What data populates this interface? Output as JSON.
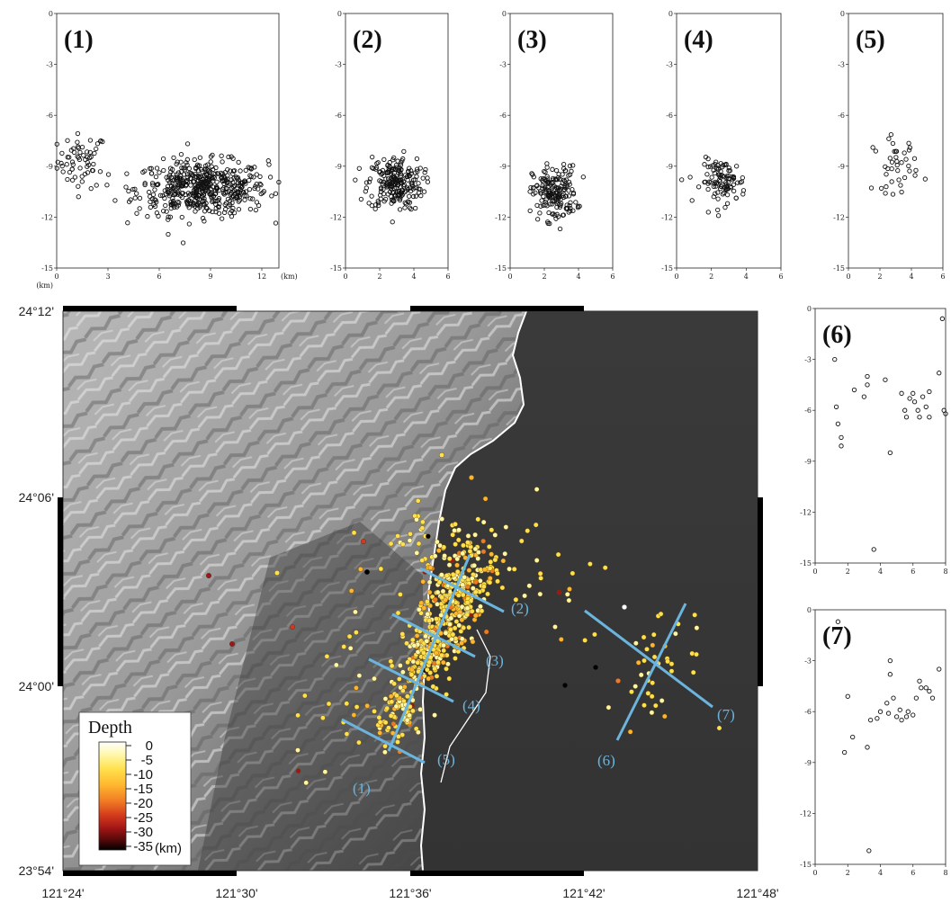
{
  "sections_top": [
    {
      "label": "(1)",
      "xlim": [
        0,
        13
      ],
      "xticks": [
        "0",
        "3",
        "6",
        "9",
        "12"
      ],
      "xunit_left": "(km)",
      "xunit_right": "(km)",
      "clusters": [
        {
          "cx": 1.5,
          "cy": -8.7,
          "sx": 0.9,
          "sy": 1.0,
          "n": 60
        },
        {
          "cx": 8.5,
          "cy": -10.3,
          "sx": 2.4,
          "sy": 1.0,
          "n": 520
        }
      ]
    },
    {
      "label": "(2)",
      "xlim": [
        0,
        6
      ],
      "xticks": [
        "0",
        "2",
        "4",
        "6"
      ],
      "clusters": [
        {
          "cx": 2.9,
          "cy": -10.0,
          "sx": 1.0,
          "sy": 1.0,
          "n": 220
        }
      ]
    },
    {
      "label": "(3)",
      "xlim": [
        0,
        6
      ],
      "xticks": [
        "0",
        "2",
        "4",
        "6"
      ],
      "clusters": [
        {
          "cx": 2.6,
          "cy": -10.6,
          "sx": 0.8,
          "sy": 1.0,
          "n": 180
        }
      ]
    },
    {
      "label": "(4)",
      "xlim": [
        0,
        6
      ],
      "xticks": [
        "0",
        "2",
        "4",
        "6"
      ],
      "clusters": [
        {
          "cx": 2.7,
          "cy": -9.9,
          "sx": 0.8,
          "sy": 0.8,
          "n": 100
        }
      ]
    },
    {
      "label": "(5)",
      "xlim": [
        0,
        6
      ],
      "xticks": [
        "0",
        "2",
        "4",
        "6"
      ],
      "clusters": [
        {
          "cx": 3.0,
          "cy": -8.9,
          "sx": 0.9,
          "sy": 1.0,
          "n": 40
        }
      ]
    }
  ],
  "sections_side": [
    {
      "label": "(6)",
      "xlim": [
        0,
        8
      ],
      "xticks": [
        "0",
        "2",
        "4",
        "6",
        "8"
      ],
      "points": [
        [
          1.2,
          -3.0
        ],
        [
          1.3,
          -5.8
        ],
        [
          1.4,
          -6.8
        ],
        [
          1.6,
          -7.6
        ],
        [
          1.6,
          -8.1
        ],
        [
          2.4,
          -4.8
        ],
        [
          3.0,
          -5.2
        ],
        [
          3.2,
          -4.0
        ],
        [
          3.2,
          -4.5
        ],
        [
          3.6,
          -14.2
        ],
        [
          4.3,
          -4.2
        ],
        [
          4.6,
          -8.5
        ],
        [
          5.3,
          -5.0
        ],
        [
          5.5,
          -6.0
        ],
        [
          5.6,
          -6.4
        ],
        [
          5.8,
          -5.3
        ],
        [
          6.0,
          -5.0
        ],
        [
          6.1,
          -5.5
        ],
        [
          6.3,
          -6.0
        ],
        [
          6.4,
          -6.4
        ],
        [
          6.6,
          -5.2
        ],
        [
          6.8,
          -5.8
        ],
        [
          7.0,
          -6.4
        ],
        [
          7.0,
          -4.9
        ],
        [
          7.6,
          -3.8
        ],
        [
          7.8,
          -0.6
        ],
        [
          7.9,
          -6.0
        ],
        [
          8.0,
          -6.2
        ]
      ]
    },
    {
      "label": "(7)",
      "xlim": [
        0,
        8
      ],
      "xticks": [
        "0",
        "2",
        "4",
        "6",
        "8"
      ],
      "points": [
        [
          1.4,
          -0.7
        ],
        [
          1.8,
          -8.4
        ],
        [
          2.0,
          -5.1
        ],
        [
          2.3,
          -7.5
        ],
        [
          3.2,
          -8.1
        ],
        [
          3.3,
          -14.2
        ],
        [
          3.4,
          -6.5
        ],
        [
          3.8,
          -6.4
        ],
        [
          4.0,
          -6.0
        ],
        [
          4.4,
          -5.5
        ],
        [
          4.5,
          -6.1
        ],
        [
          4.6,
          -3.0
        ],
        [
          4.6,
          -3.8
        ],
        [
          4.8,
          -5.2
        ],
        [
          5.0,
          -6.3
        ],
        [
          5.2,
          -5.9
        ],
        [
          5.3,
          -6.5
        ],
        [
          5.6,
          -6.3
        ],
        [
          5.7,
          -6.0
        ],
        [
          6.0,
          -6.2
        ],
        [
          6.2,
          -5.2
        ],
        [
          6.4,
          -4.2
        ],
        [
          6.5,
          -4.6
        ],
        [
          6.8,
          -4.6
        ],
        [
          7.0,
          -4.8
        ],
        [
          7.2,
          -5.2
        ],
        [
          7.6,
          -3.5
        ]
      ]
    }
  ],
  "depth_axis": {
    "ylim": [
      -15,
      0
    ],
    "yticks": [
      "0",
      "-3",
      "-6",
      "-9",
      "-12",
      "-15"
    ]
  },
  "map": {
    "lon_labels": [
      "121°24'",
      "121°30'",
      "121°36'",
      "121°42'",
      "121°48'"
    ],
    "lat_labels": [
      "24°12'",
      "24°06'",
      "24°00'",
      "23°54'"
    ],
    "profile_lines": [
      {
        "label": "(1)",
        "role": "perpendicular"
      },
      {
        "label": "(2)"
      },
      {
        "label": "(3)"
      },
      {
        "label": "(4)"
      },
      {
        "label": "(5)"
      },
      {
        "label": "(6)"
      },
      {
        "label": "(7)"
      }
    ],
    "line_color": "#6ab4dd",
    "legend": {
      "title": "Depth",
      "ticks": [
        "0",
        "-5",
        "-10",
        "-15",
        "-20",
        "-25",
        "-30",
        "-35"
      ],
      "unit": "(km)",
      "colors": [
        "#ffffff",
        "#fff7a8",
        "#ffe14d",
        "#ffb62e",
        "#f07a24",
        "#d33a1c",
        "#a01616",
        "#5a0a0a",
        "#000000"
      ]
    }
  }
}
